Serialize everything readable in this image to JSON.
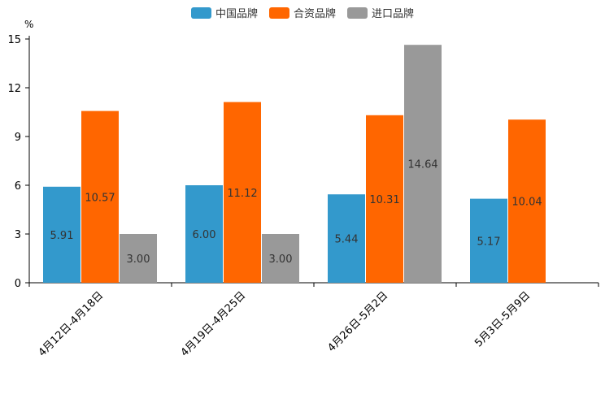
{
  "chart_data": {
    "type": "bar",
    "unit": "%",
    "categories": [
      "4月12日-4月18日",
      "4月19日-4月25日",
      "4月26日-5月2日",
      "5月3日-5月9日"
    ],
    "series": [
      {
        "name": "中国品牌",
        "color": "#3399cc",
        "values": [
          5.91,
          6.0,
          5.44,
          5.17
        ]
      },
      {
        "name": "合资品牌",
        "color": "#ff6600",
        "values": [
          10.57,
          11.12,
          10.31,
          10.04
        ]
      },
      {
        "name": "进口品牌",
        "color": "#999999",
        "values": [
          3.0,
          3.0,
          14.64,
          null
        ]
      }
    ],
    "ylim": [
      0,
      15
    ],
    "yticks": [
      0,
      3,
      6,
      9,
      12,
      15
    ],
    "legend_position": "top-center",
    "grid": false
  }
}
